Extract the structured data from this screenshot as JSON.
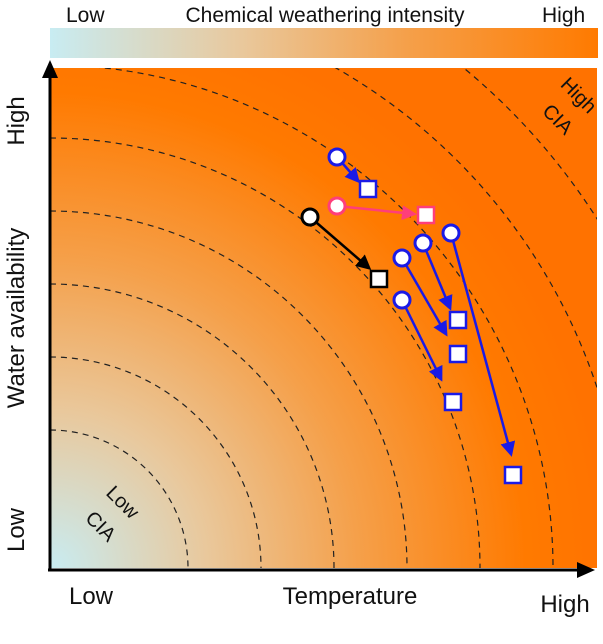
{
  "colorbar": {
    "low_label": "Low",
    "title": "Chemical weathering intensity",
    "high_label": "High",
    "colors": [
      "#c8ecf2",
      "#e9c89c",
      "#f5a04a",
      "#ff7a00"
    ]
  },
  "axes": {
    "y_label": "Water availability",
    "y_high": "High",
    "y_low": "Low",
    "x_label": "Temperature",
    "x_low": "Low",
    "x_high": "High"
  },
  "annotations": {
    "low_cia_line1": "Low",
    "low_cia_line2": "CIA",
    "high_cia_line1": "High",
    "high_cia_line2": "CIA"
  },
  "contours": {
    "count": 8,
    "style": "dashed"
  },
  "shifts": [
    {
      "group": "black",
      "color": "#000000"
    },
    {
      "group": "pink",
      "color": "#ff3e7a"
    },
    {
      "group": "blue",
      "color": "#1a1ae6"
    },
    {
      "group": "blue",
      "color": "#1a1ae6"
    },
    {
      "group": "blue",
      "color": "#1a1ae6"
    },
    {
      "group": "blue",
      "color": "#1a1ae6"
    },
    {
      "group": "blue",
      "color": "#1a1ae6"
    }
  ],
  "legend_markers": {
    "start": "circle",
    "end": "square"
  }
}
